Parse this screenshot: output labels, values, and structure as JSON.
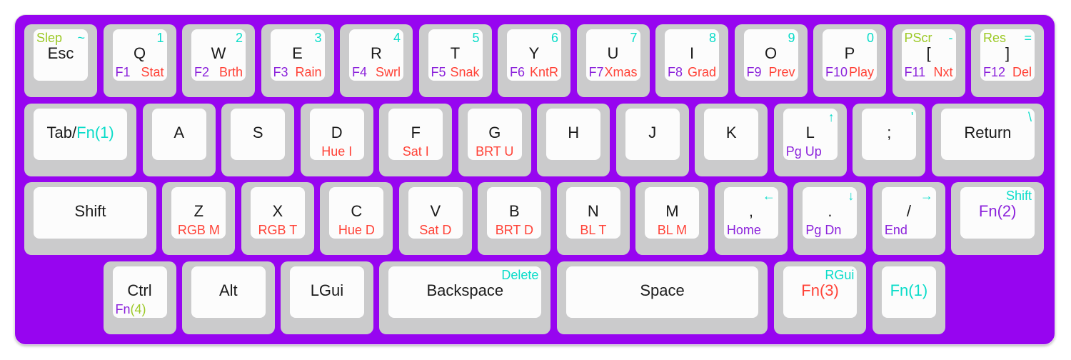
{
  "colors": {
    "board_bg": "#9705f0",
    "key_outer": "#cbcbcc",
    "key_face": "#fcfcfc",
    "legend": {
      "black": "#1b1b1b",
      "teal": "#0adcc9",
      "red": "#ff4237",
      "purple": "#8c23db",
      "green": "#9cc926"
    }
  },
  "keyboard": {
    "rows": [
      {
        "offset": 0,
        "keys": [
          {
            "id": "esc",
            "w": 1,
            "legends": [
              {
                "pos": "tl",
                "color": "green",
                "text": "Slep"
              },
              {
                "pos": "tr",
                "color": "teal",
                "text": "~"
              },
              {
                "pos": "mc",
                "color": "black",
                "text": "Esc"
              }
            ]
          },
          {
            "id": "q",
            "w": 1,
            "legends": [
              {
                "pos": "tr",
                "color": "teal",
                "text": "1"
              },
              {
                "pos": "mc",
                "color": "black",
                "text": "Q"
              },
              {
                "pos": "bl",
                "color": "purple",
                "text": "F1"
              },
              {
                "pos": "br",
                "color": "red",
                "text": "Stat"
              }
            ]
          },
          {
            "id": "w",
            "w": 1,
            "legends": [
              {
                "pos": "tr",
                "color": "teal",
                "text": "2"
              },
              {
                "pos": "mc",
                "color": "black",
                "text": "W"
              },
              {
                "pos": "bl",
                "color": "purple",
                "text": "F2"
              },
              {
                "pos": "br",
                "color": "red",
                "text": "Brth"
              }
            ]
          },
          {
            "id": "e",
            "w": 1,
            "legends": [
              {
                "pos": "tr",
                "color": "teal",
                "text": "3"
              },
              {
                "pos": "mc",
                "color": "black",
                "text": "E"
              },
              {
                "pos": "bl",
                "color": "purple",
                "text": "F3"
              },
              {
                "pos": "br",
                "color": "red",
                "text": "Rain"
              }
            ]
          },
          {
            "id": "r",
            "w": 1,
            "legends": [
              {
                "pos": "tr",
                "color": "teal",
                "text": "4"
              },
              {
                "pos": "mc",
                "color": "black",
                "text": "R"
              },
              {
                "pos": "bl",
                "color": "purple",
                "text": "F4"
              },
              {
                "pos": "br",
                "color": "red",
                "text": "Swrl"
              }
            ]
          },
          {
            "id": "t",
            "w": 1,
            "legends": [
              {
                "pos": "tr",
                "color": "teal",
                "text": "5"
              },
              {
                "pos": "mc",
                "color": "black",
                "text": "T"
              },
              {
                "pos": "bl",
                "color": "purple",
                "text": "F5"
              },
              {
                "pos": "br",
                "color": "red",
                "text": "Snak"
              }
            ]
          },
          {
            "id": "y",
            "w": 1,
            "legends": [
              {
                "pos": "tr",
                "color": "teal",
                "text": "6"
              },
              {
                "pos": "mc",
                "color": "black",
                "text": "Y"
              },
              {
                "pos": "bl",
                "color": "purple",
                "text": "F6"
              },
              {
                "pos": "br",
                "color": "red",
                "text": "KntR"
              }
            ]
          },
          {
            "id": "u",
            "w": 1,
            "legends": [
              {
                "pos": "tr",
                "color": "teal",
                "text": "7"
              },
              {
                "pos": "mc",
                "color": "black",
                "text": "U"
              },
              {
                "pos": "bl",
                "color": "purple",
                "text": "F7"
              },
              {
                "pos": "br",
                "color": "red",
                "text": "Xmas"
              }
            ]
          },
          {
            "id": "i",
            "w": 1,
            "legends": [
              {
                "pos": "tr",
                "color": "teal",
                "text": "8"
              },
              {
                "pos": "mc",
                "color": "black",
                "text": "I"
              },
              {
                "pos": "bl",
                "color": "purple",
                "text": "F8"
              },
              {
                "pos": "br",
                "color": "red",
                "text": "Grad"
              }
            ]
          },
          {
            "id": "o",
            "w": 1,
            "legends": [
              {
                "pos": "tr",
                "color": "teal",
                "text": "9"
              },
              {
                "pos": "mc",
                "color": "black",
                "text": "O"
              },
              {
                "pos": "bl",
                "color": "purple",
                "text": "F9"
              },
              {
                "pos": "br",
                "color": "red",
                "text": "Prev"
              }
            ]
          },
          {
            "id": "p",
            "w": 1,
            "legends": [
              {
                "pos": "tr",
                "color": "teal",
                "text": "0"
              },
              {
                "pos": "mc",
                "color": "black",
                "text": "P"
              },
              {
                "pos": "bl",
                "color": "purple",
                "text": "F10"
              },
              {
                "pos": "br",
                "color": "red",
                "text": "Play"
              }
            ]
          },
          {
            "id": "lbracket",
            "w": 1,
            "legends": [
              {
                "pos": "tl",
                "color": "green",
                "text": "PScr"
              },
              {
                "pos": "tr",
                "color": "teal",
                "text": "-"
              },
              {
                "pos": "mc",
                "color": "black",
                "text": "["
              },
              {
                "pos": "bl",
                "color": "purple",
                "text": "F11"
              },
              {
                "pos": "br",
                "color": "red",
                "text": "Nxt"
              }
            ]
          },
          {
            "id": "rbracket",
            "w": 1,
            "legends": [
              {
                "pos": "tl",
                "color": "green",
                "text": "Res"
              },
              {
                "pos": "tr",
                "color": "teal",
                "text": "="
              },
              {
                "pos": "mc",
                "color": "black",
                "text": "]"
              },
              {
                "pos": "bl",
                "color": "purple",
                "text": "F12"
              },
              {
                "pos": "br",
                "color": "red",
                "text": "Del"
              }
            ]
          }
        ]
      },
      {
        "offset": 0,
        "keys": [
          {
            "id": "tab",
            "w": 1.5,
            "legends": [
              {
                "pos": "mc",
                "parts": [
                  {
                    "text": "Tab/",
                    "color": "black"
                  },
                  {
                    "text": "Fn(1)",
                    "color": "teal"
                  }
                ]
              }
            ]
          },
          {
            "id": "a",
            "w": 1,
            "legends": [
              {
                "pos": "mc",
                "color": "black",
                "text": "A"
              }
            ]
          },
          {
            "id": "s",
            "w": 1,
            "legends": [
              {
                "pos": "mc",
                "color": "black",
                "text": "S"
              }
            ]
          },
          {
            "id": "d",
            "w": 1,
            "legends": [
              {
                "pos": "mc",
                "color": "black",
                "text": "D"
              },
              {
                "pos": "bc",
                "color": "red",
                "text": "Hue I"
              }
            ]
          },
          {
            "id": "f",
            "w": 1,
            "legends": [
              {
                "pos": "mc",
                "color": "black",
                "text": "F"
              },
              {
                "pos": "bc",
                "color": "red",
                "text": "Sat I"
              }
            ]
          },
          {
            "id": "g",
            "w": 1,
            "legends": [
              {
                "pos": "mc",
                "color": "black",
                "text": "G"
              },
              {
                "pos": "bc",
                "color": "red",
                "text": "BRT U"
              }
            ]
          },
          {
            "id": "h",
            "w": 1,
            "legends": [
              {
                "pos": "mc",
                "color": "black",
                "text": "H"
              }
            ]
          },
          {
            "id": "j",
            "w": 1,
            "legends": [
              {
                "pos": "mc",
                "color": "black",
                "text": "J"
              }
            ]
          },
          {
            "id": "k",
            "w": 1,
            "legends": [
              {
                "pos": "mc",
                "color": "black",
                "text": "K"
              }
            ]
          },
          {
            "id": "l",
            "w": 1,
            "legends": [
              {
                "pos": "tr",
                "color": "teal",
                "text": "↑"
              },
              {
                "pos": "mc",
                "color": "black",
                "text": "L"
              },
              {
                "pos": "bl",
                "color": "purple",
                "text": "Pg Up"
              }
            ]
          },
          {
            "id": "semicolon",
            "w": 1,
            "legends": [
              {
                "pos": "tr",
                "color": "teal",
                "text": "'"
              },
              {
                "pos": "mc",
                "color": "black",
                "text": ";"
              }
            ]
          },
          {
            "id": "return",
            "w": 1.5,
            "legends": [
              {
                "pos": "tr",
                "color": "teal",
                "text": "\\"
              },
              {
                "pos": "mc",
                "color": "black",
                "text": "Return"
              }
            ]
          }
        ]
      },
      {
        "offset": 0,
        "keys": [
          {
            "id": "lshift",
            "w": 1.75,
            "legends": [
              {
                "pos": "mc",
                "color": "black",
                "text": "Shift"
              }
            ]
          },
          {
            "id": "z",
            "w": 1,
            "legends": [
              {
                "pos": "mc",
                "color": "black",
                "text": "Z"
              },
              {
                "pos": "bc",
                "color": "red",
                "text": "RGB M"
              }
            ]
          },
          {
            "id": "x",
            "w": 1,
            "legends": [
              {
                "pos": "mc",
                "color": "black",
                "text": "X"
              },
              {
                "pos": "bc",
                "color": "red",
                "text": "RGB T"
              }
            ]
          },
          {
            "id": "c",
            "w": 1,
            "legends": [
              {
                "pos": "mc",
                "color": "black",
                "text": "C"
              },
              {
                "pos": "bc",
                "color": "red",
                "text": "Hue D"
              }
            ]
          },
          {
            "id": "v",
            "w": 1,
            "legends": [
              {
                "pos": "mc",
                "color": "black",
                "text": "V"
              },
              {
                "pos": "bc",
                "color": "red",
                "text": "Sat D"
              }
            ]
          },
          {
            "id": "b",
            "w": 1,
            "legends": [
              {
                "pos": "mc",
                "color": "black",
                "text": "B"
              },
              {
                "pos": "bc",
                "color": "red",
                "text": "BRT D"
              }
            ]
          },
          {
            "id": "n",
            "w": 1,
            "legends": [
              {
                "pos": "mc",
                "color": "black",
                "text": "N"
              },
              {
                "pos": "bc",
                "color": "red",
                "text": "BL T"
              }
            ]
          },
          {
            "id": "m",
            "w": 1,
            "legends": [
              {
                "pos": "mc",
                "color": "black",
                "text": "M"
              },
              {
                "pos": "bc",
                "color": "red",
                "text": "BL M"
              }
            ]
          },
          {
            "id": "comma",
            "w": 1,
            "legends": [
              {
                "pos": "tr",
                "color": "teal",
                "text": "←"
              },
              {
                "pos": "mc",
                "color": "black",
                "text": ","
              },
              {
                "pos": "bl",
                "color": "purple",
                "text": "Home"
              }
            ]
          },
          {
            "id": "period",
            "w": 1,
            "legends": [
              {
                "pos": "tr",
                "color": "teal",
                "text": "↓"
              },
              {
                "pos": "mc",
                "color": "black",
                "text": "."
              },
              {
                "pos": "bl",
                "color": "purple",
                "text": "Pg Dn"
              }
            ]
          },
          {
            "id": "slash",
            "w": 1,
            "legends": [
              {
                "pos": "tr",
                "color": "teal",
                "text": "→"
              },
              {
                "pos": "mc",
                "color": "black",
                "text": "/"
              },
              {
                "pos": "bl",
                "color": "purple",
                "text": "End"
              }
            ]
          },
          {
            "id": "rshift",
            "w": 1.25,
            "legends": [
              {
                "pos": "tr",
                "color": "teal",
                "text": "Shift"
              },
              {
                "pos": "mc",
                "color": "purple",
                "text": "Fn(2)"
              }
            ]
          }
        ]
      },
      {
        "offset": 1,
        "keys": [
          {
            "id": "ctrl",
            "w": 1,
            "legends": [
              {
                "pos": "mc",
                "color": "black",
                "text": "Ctrl"
              },
              {
                "pos": "bl",
                "parts": [
                  {
                    "text": "Fn",
                    "color": "purple"
                  },
                  {
                    "text": "(4)",
                    "color": "green"
                  }
                ]
              }
            ]
          },
          {
            "id": "alt",
            "w": 1.25,
            "legends": [
              {
                "pos": "mc",
                "color": "black",
                "text": "Alt"
              }
            ]
          },
          {
            "id": "lgui",
            "w": 1.25,
            "legends": [
              {
                "pos": "mc",
                "color": "black",
                "text": "LGui"
              }
            ]
          },
          {
            "id": "backspace",
            "w": 2.25,
            "legends": [
              {
                "pos": "tr",
                "color": "teal",
                "text": "Delete"
              },
              {
                "pos": "mc",
                "color": "black",
                "text": "Backspace"
              }
            ]
          },
          {
            "id": "space",
            "w": 2.75,
            "legends": [
              {
                "pos": "mc",
                "color": "black",
                "text": "Space"
              }
            ]
          },
          {
            "id": "fn3",
            "w": 1.25,
            "legends": [
              {
                "pos": "tr",
                "color": "teal",
                "text": "RGui"
              },
              {
                "pos": "mc",
                "color": "red",
                "text": "Fn(3)"
              }
            ]
          },
          {
            "id": "fn1",
            "w": 1,
            "legends": [
              {
                "pos": "mc",
                "color": "teal",
                "text": "Fn(1)"
              }
            ]
          }
        ]
      }
    ]
  }
}
